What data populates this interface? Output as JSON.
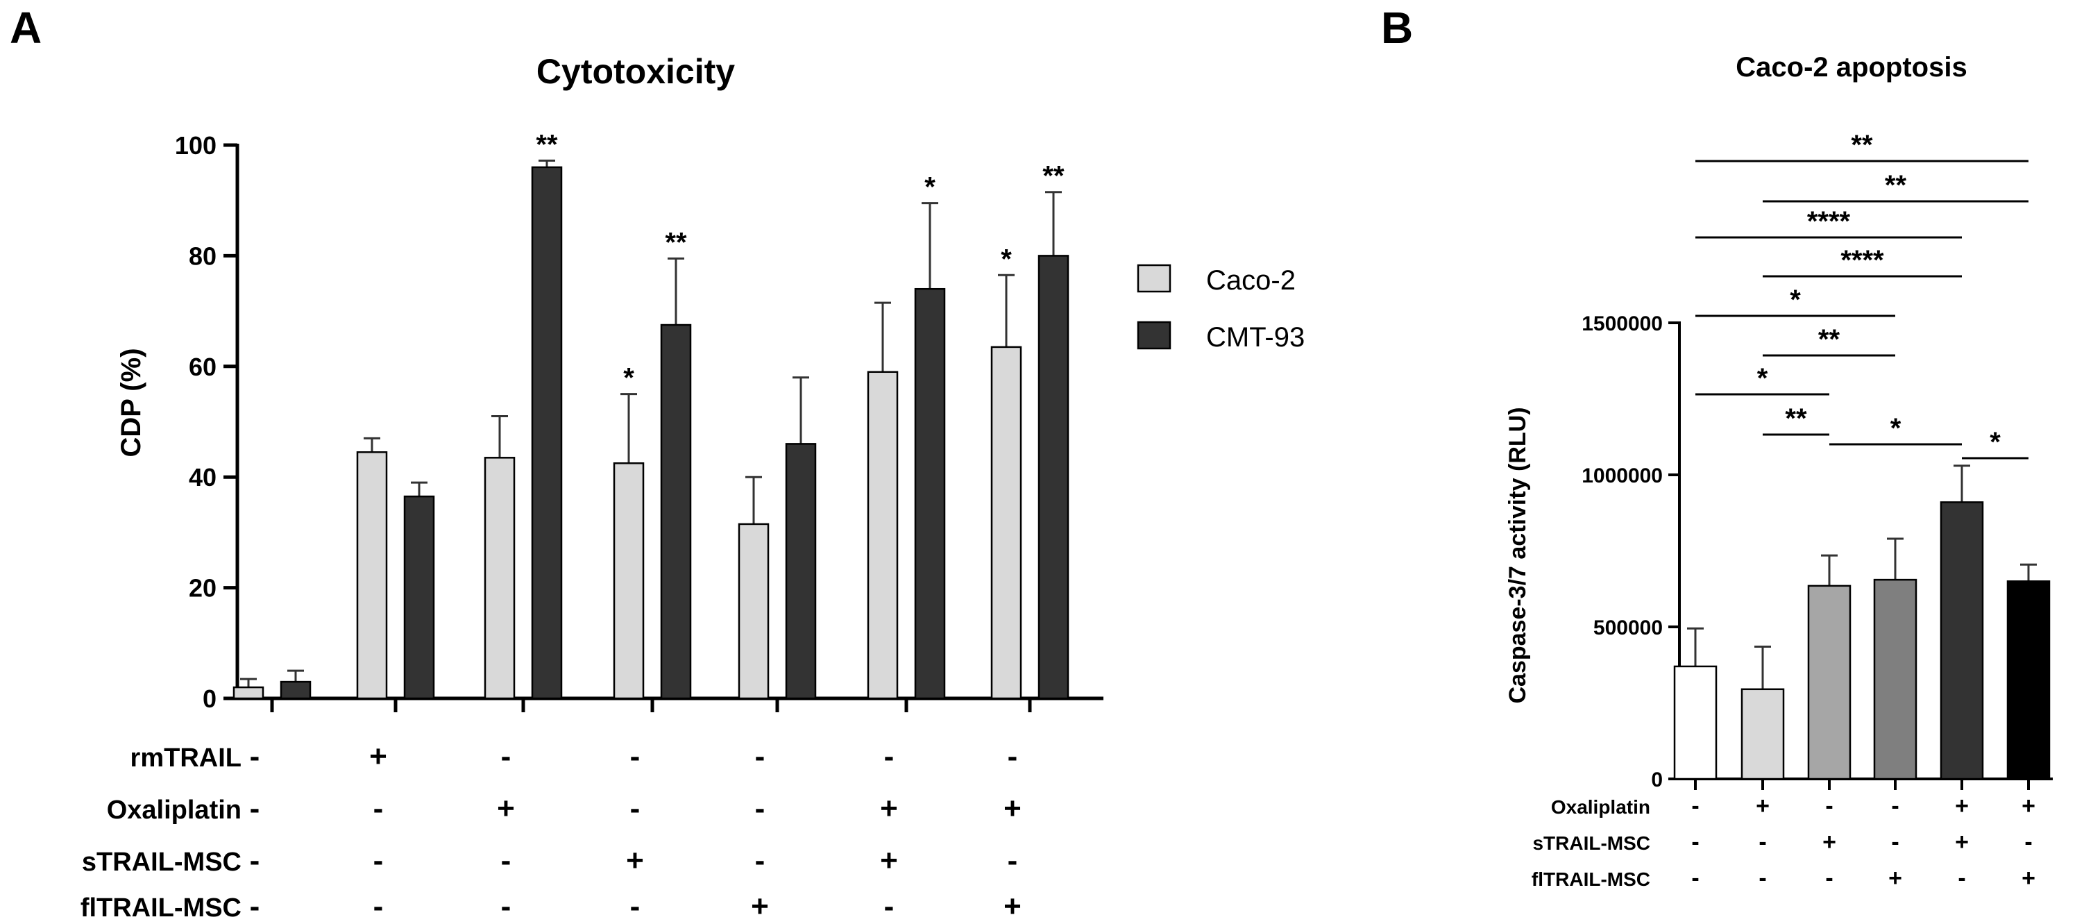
{
  "chart_data": [
    {
      "panel": "A",
      "type": "bar",
      "title": "Cytotoxicity",
      "ylabel": "CDP (%)",
      "xlabel": "",
      "ylim": [
        0,
        100
      ],
      "yticks": [
        "0",
        "20",
        "40",
        "60",
        "80",
        "100"
      ],
      "legend": {
        "position": "right",
        "entries": [
          "Caco-2",
          "CMT-93"
        ]
      },
      "series": [
        {
          "name": "Caco-2",
          "color": "#d9d9d9",
          "values": [
            2,
            44.5,
            43.5,
            42.5,
            31.5,
            59,
            63.5
          ],
          "errors": [
            1.5,
            2.5,
            7.5,
            12.5,
            8.5,
            12.5,
            13
          ],
          "stars": [
            "",
            "",
            "",
            "*",
            "",
            "",
            "*"
          ]
        },
        {
          "name": "CMT-93",
          "color": "#333333",
          "values": [
            3,
            36.5,
            96,
            67.5,
            46,
            74,
            80
          ],
          "errors": [
            2,
            2.5,
            1.2,
            12,
            12,
            15.5,
            11.5
          ],
          "stars": [
            "",
            "",
            "**",
            "**",
            "",
            "*",
            "**"
          ]
        }
      ],
      "treatments": [
        {
          "label": "rmTRAIL",
          "signs": [
            "-",
            "+",
            "-",
            "-",
            "-",
            "-",
            "-"
          ]
        },
        {
          "label": "Oxaliplatin",
          "signs": [
            "-",
            "-",
            "+",
            "-",
            "-",
            "+",
            "+"
          ]
        },
        {
          "label": "sTRAIL-MSC",
          "signs": [
            "-",
            "-",
            "-",
            "+",
            "-",
            "+",
            "-"
          ]
        },
        {
          "label": "flTRAIL-MSC",
          "signs": [
            "-",
            "-",
            "-",
            "-",
            "+",
            "-",
            "+"
          ]
        }
      ]
    },
    {
      "panel": "B",
      "type": "bar",
      "title": "Caco-2 apoptosis",
      "ylabel": "Caspase-3/7 activity (RLU)",
      "xlabel": "",
      "ylim": [
        0,
        1500000
      ],
      "yticks": [
        "0",
        "500000",
        "1000000",
        "1500000"
      ],
      "values": [
        370000,
        295000,
        635000,
        655000,
        910000,
        650000
      ],
      "errors": [
        125000,
        140000,
        100000,
        135000,
        120000,
        55000
      ],
      "colors": [
        "#ffffff",
        "#d9d9d9",
        "#a6a6a6",
        "#7f7f7f",
        "#333333",
        "#000000"
      ],
      "comparisons": [
        {
          "from": 1,
          "to": 6,
          "label": "**"
        },
        {
          "from": 2,
          "to": 6,
          "label": "**"
        },
        {
          "from": 1,
          "to": 5,
          "label": "****"
        },
        {
          "from": 2,
          "to": 5,
          "label": "****"
        },
        {
          "from": 1,
          "to": 4,
          "label": "*"
        },
        {
          "from": 2,
          "to": 4,
          "label": "**"
        },
        {
          "from": 1,
          "to": 3,
          "label": "*"
        },
        {
          "from": 2,
          "to": 3,
          "label": "**"
        },
        {
          "from": 3,
          "to": 5,
          "label": "*"
        },
        {
          "from": 5,
          "to": 6,
          "label": "*"
        }
      ],
      "treatments": [
        {
          "label": "Oxaliplatin",
          "signs": [
            "-",
            "+",
            "-",
            "-",
            "+",
            "+"
          ]
        },
        {
          "label": "sTRAIL-MSC",
          "signs": [
            "-",
            "-",
            "+",
            "-",
            "+",
            "-"
          ]
        },
        {
          "label": "flTRAIL-MSC",
          "signs": [
            "-",
            "-",
            "-",
            "+",
            "-",
            "+"
          ]
        }
      ]
    }
  ]
}
